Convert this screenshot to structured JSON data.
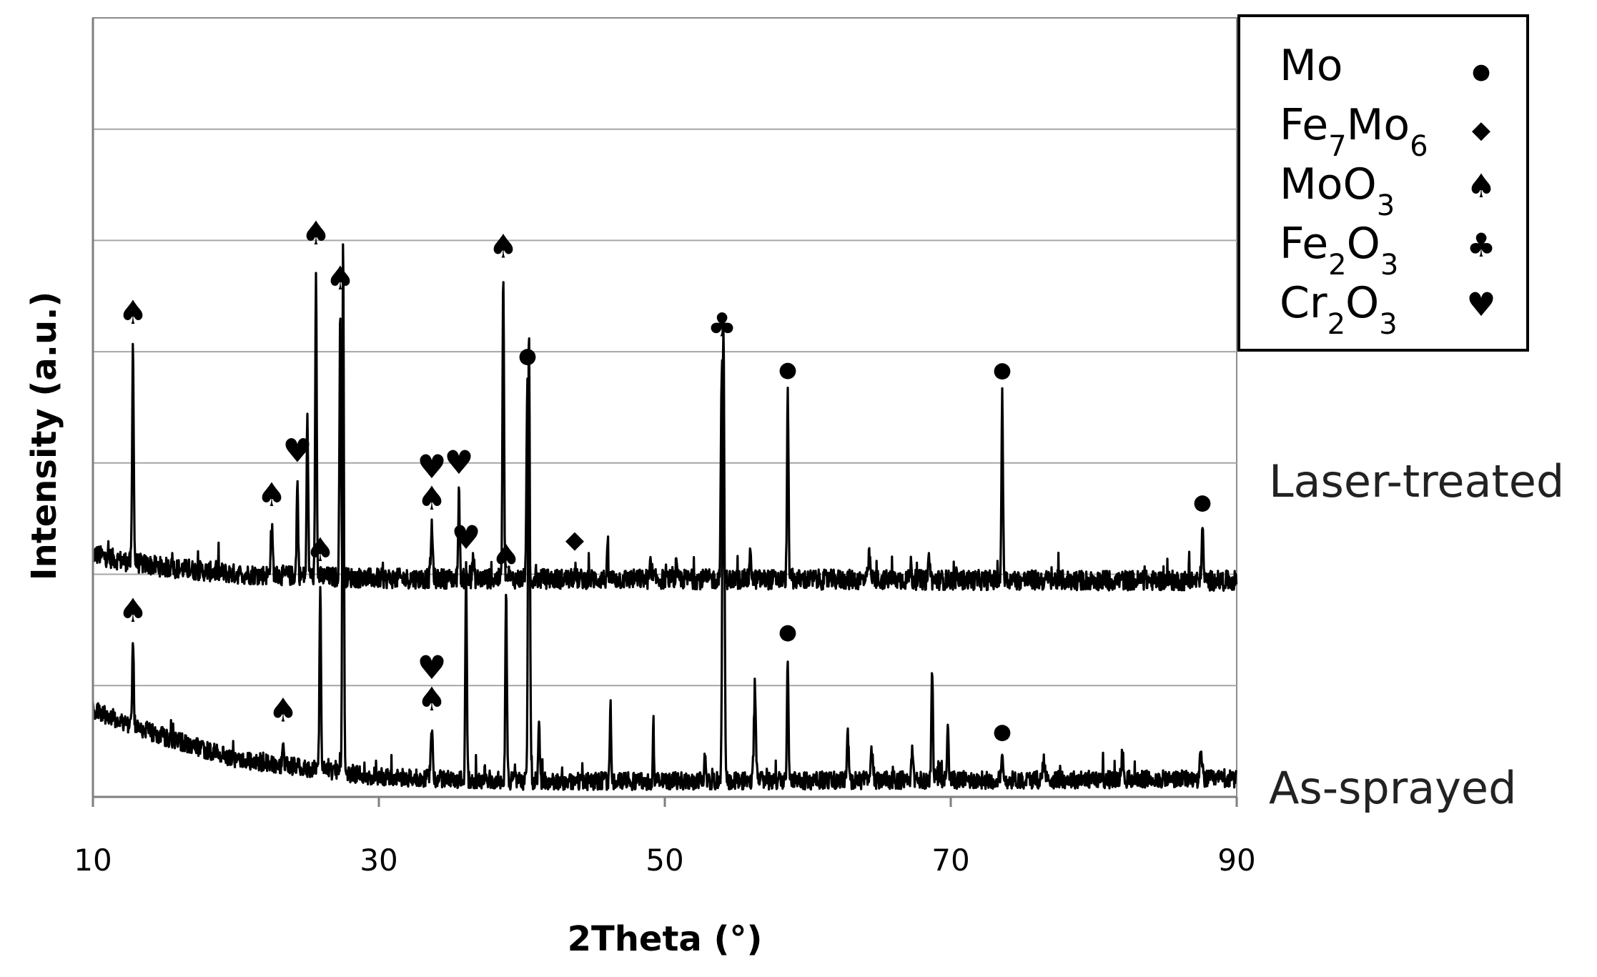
{
  "chart_data": {
    "type": "line",
    "title": "",
    "xlabel": "2Theta (°)",
    "ylabel": "Intensity (a.u.)",
    "xlim": [
      10,
      90
    ],
    "xticks": [
      "10",
      "30",
      "50",
      "70",
      "90"
    ],
    "y_tick_labels": false,
    "grid": "horizontal",
    "legend_position": "top-right",
    "series": [
      {
        "name": "Laser-treated",
        "baseline": 0.5,
        "background": [
          [
            10,
            0.58
          ],
          [
            12,
            0.55
          ],
          [
            15,
            0.52
          ],
          [
            20,
            0.49
          ],
          [
            30,
            0.47
          ],
          [
            90,
            0.46
          ]
        ],
        "peaks": [
          [
            12.8,
            0.98,
            0.15
          ],
          [
            15.5,
            0.06,
            0.12
          ],
          [
            22.5,
            0.22,
            0.2
          ],
          [
            24.3,
            0.42,
            0.15
          ],
          [
            25.0,
            0.75,
            0.14
          ],
          [
            25.6,
            1.4,
            0.14
          ],
          [
            27.3,
            1.2,
            0.15
          ],
          [
            33.7,
            0.22,
            0.2
          ],
          [
            35.6,
            0.38,
            0.16
          ],
          [
            36.6,
            0.1,
            0.15
          ],
          [
            38.7,
            1.35,
            0.15
          ],
          [
            40.4,
            0.88,
            0.2
          ],
          [
            43.7,
            0.05,
            0.15
          ],
          [
            46.0,
            0.12,
            0.12
          ],
          [
            49.0,
            0.08,
            0.1
          ],
          [
            50.8,
            0.07,
            0.1
          ],
          [
            54.0,
            1.0,
            0.2
          ],
          [
            56.0,
            0.13,
            0.15
          ],
          [
            58.6,
            0.82,
            0.15
          ],
          [
            64.3,
            0.1,
            0.2
          ],
          [
            67.2,
            0.07,
            0.15
          ],
          [
            68.5,
            0.12,
            0.15
          ],
          [
            73.6,
            0.82,
            0.15
          ],
          [
            87.6,
            0.23,
            0.18
          ]
        ],
        "noise_amplitude": 0.045
      },
      {
        "name": "As-sprayed",
        "baseline": 0.0,
        "background": [
          [
            10,
            0.38
          ],
          [
            12,
            0.33
          ],
          [
            15,
            0.26
          ],
          [
            20,
            0.16
          ],
          [
            25,
            0.12
          ],
          [
            30,
            0.08
          ],
          [
            40,
            0.06
          ],
          [
            90,
            0.07
          ]
        ],
        "peaks": [
          [
            12.8,
            0.38,
            0.15
          ],
          [
            23.3,
            0.11,
            0.15
          ],
          [
            25.9,
            0.85,
            0.15
          ],
          [
            27.5,
            2.4,
            0.15
          ],
          [
            33.7,
            0.22,
            0.2
          ],
          [
            36.1,
            0.95,
            0.15
          ],
          [
            38.9,
            0.87,
            0.15
          ],
          [
            40.5,
            1.98,
            0.18
          ],
          [
            41.2,
            0.3,
            0.15
          ],
          [
            46.2,
            0.36,
            0.12
          ],
          [
            49.2,
            0.27,
            0.1
          ],
          [
            52.8,
            0.12,
            0.12
          ],
          [
            54.1,
            2.05,
            0.2
          ],
          [
            56.3,
            0.4,
            0.2
          ],
          [
            58.6,
            0.55,
            0.15
          ],
          [
            62.8,
            0.2,
            0.2
          ],
          [
            64.5,
            0.15,
            0.2
          ],
          [
            67.3,
            0.14,
            0.15
          ],
          [
            68.7,
            0.5,
            0.15
          ],
          [
            69.8,
            0.27,
            0.15
          ],
          [
            73.6,
            0.1,
            0.15
          ],
          [
            76.5,
            0.1,
            0.2
          ],
          [
            82.0,
            0.12,
            0.2
          ],
          [
            87.5,
            0.1,
            0.25
          ]
        ],
        "noise_amplitude": 0.04
      }
    ],
    "peak_markers": [
      {
        "series": "Laser-treated",
        "x": 12.8,
        "symbols": [
          "♠"
        ]
      },
      {
        "series": "Laser-treated",
        "x": 22.5,
        "symbols": [
          "♠"
        ]
      },
      {
        "series": "Laser-treated",
        "x": 24.3,
        "symbols": [
          "♥"
        ]
      },
      {
        "series": "Laser-treated",
        "x": 25.6,
        "symbols": [
          "♠"
        ]
      },
      {
        "series": "Laser-treated",
        "x": 27.3,
        "symbols": [
          "♠"
        ]
      },
      {
        "series": "Laser-treated",
        "x": 33.7,
        "symbols": [
          "♠",
          "♥"
        ]
      },
      {
        "series": "Laser-treated",
        "x": 35.6,
        "symbols": [
          "♥"
        ]
      },
      {
        "series": "Laser-treated",
        "x": 38.7,
        "symbols": [
          "♠"
        ]
      },
      {
        "series": "Laser-treated",
        "x": 40.4,
        "symbols": [
          "●"
        ]
      },
      {
        "series": "Laser-treated",
        "x": 43.7,
        "symbols": [
          "◆"
        ]
      },
      {
        "series": "Laser-treated",
        "x": 54.0,
        "symbols": [
          "♣"
        ]
      },
      {
        "series": "Laser-treated",
        "x": 58.6,
        "symbols": [
          "●"
        ]
      },
      {
        "series": "Laser-treated",
        "x": 73.6,
        "symbols": [
          "●"
        ]
      },
      {
        "series": "Laser-treated",
        "x": 87.6,
        "symbols": [
          "●"
        ]
      },
      {
        "series": "As-sprayed",
        "x": 12.8,
        "symbols": [
          "♠"
        ]
      },
      {
        "series": "As-sprayed",
        "x": 23.3,
        "symbols": [
          "♠"
        ]
      },
      {
        "series": "As-sprayed",
        "x": 25.9,
        "symbols": [
          "♠"
        ]
      },
      {
        "series": "As-sprayed",
        "x": 33.7,
        "symbols": [
          "♠",
          "♥"
        ]
      },
      {
        "series": "As-sprayed",
        "x": 36.1,
        "symbols": [
          "♥"
        ]
      },
      {
        "series": "As-sprayed",
        "x": 38.9,
        "symbols": [
          "♠"
        ]
      },
      {
        "series": "As-sprayed",
        "x": 58.6,
        "symbols": [
          "●"
        ]
      },
      {
        "series": "As-sprayed",
        "x": 73.6,
        "symbols": [
          "●"
        ]
      }
    ],
    "legend": [
      {
        "parts": [
          [
            "Mo",
            false
          ]
        ],
        "symbol": "●"
      },
      {
        "parts": [
          [
            "Fe",
            false
          ],
          [
            "7",
            "sub"
          ],
          [
            "Mo",
            false
          ],
          [
            "6",
            "sub"
          ]
        ],
        "symbol": "◆"
      },
      {
        "parts": [
          [
            "MoO",
            false
          ],
          [
            "3",
            "sub"
          ]
        ],
        "symbol": "♠"
      },
      {
        "parts": [
          [
            "Fe",
            false
          ],
          [
            "2",
            "sub"
          ],
          [
            "O",
            false
          ],
          [
            "3",
            "sub"
          ]
        ],
        "symbol": "♣"
      },
      {
        "parts": [
          [
            "Cr",
            false
          ],
          [
            "2",
            "sub"
          ],
          [
            "O",
            false
          ],
          [
            "3",
            "sub"
          ]
        ],
        "symbol": "♥"
      }
    ]
  }
}
